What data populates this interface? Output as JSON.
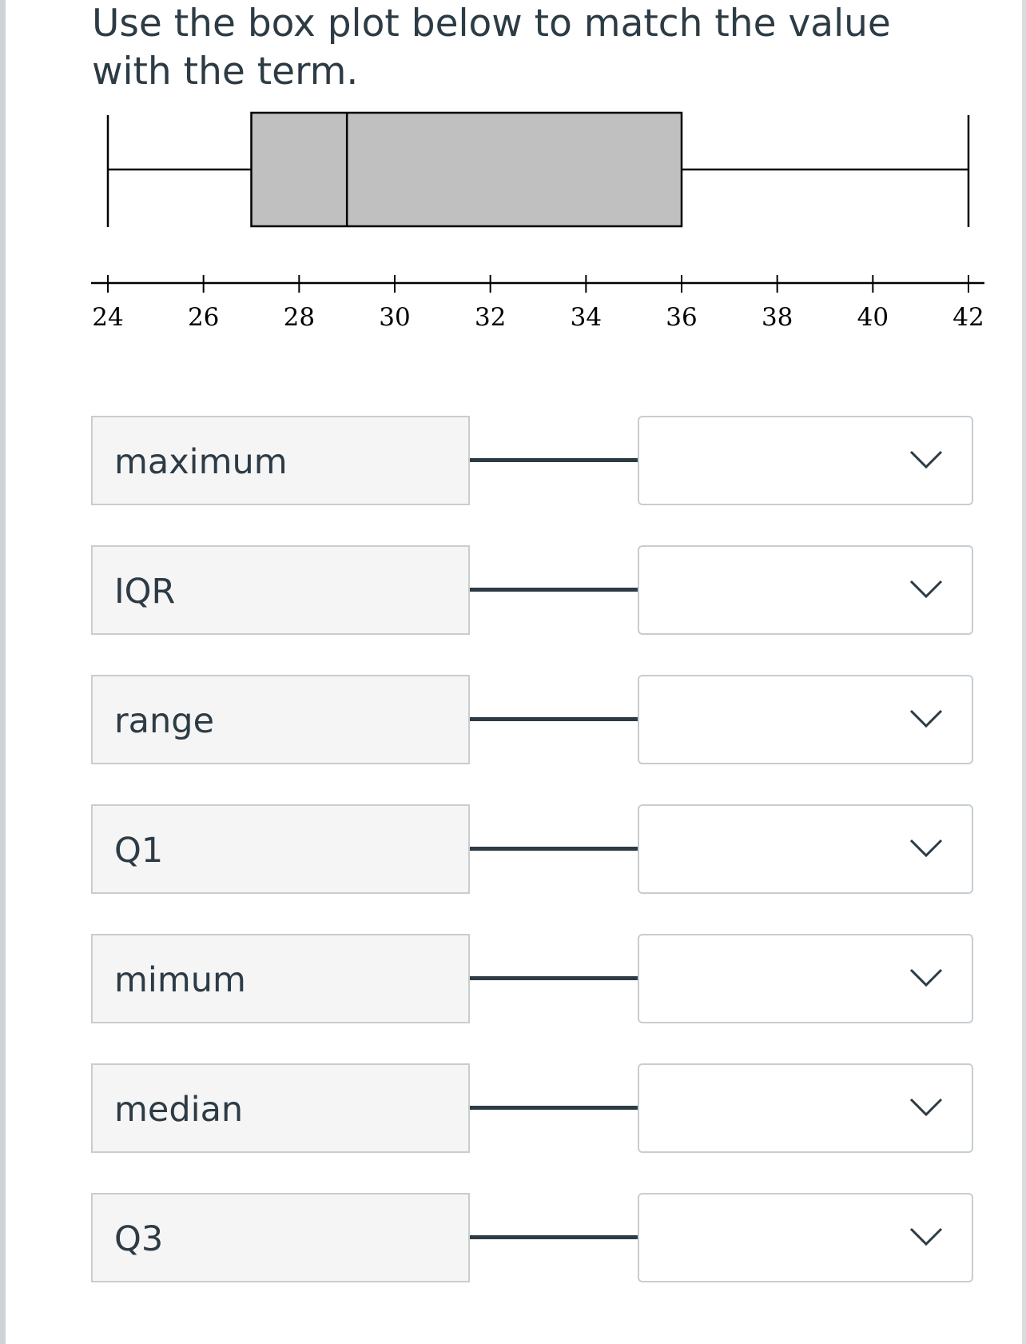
{
  "question": {
    "text": "Use the box plot below to match the value with the term."
  },
  "chart_data": {
    "type": "box",
    "orientation": "horizontal",
    "minimum": 24,
    "q1": 27,
    "median": 29,
    "q3": 36,
    "maximum": 42,
    "xlim": [
      24,
      42
    ],
    "ticks": [
      24,
      26,
      28,
      30,
      32,
      34,
      36,
      38,
      40,
      42
    ],
    "box_fill": "#c0c0c0",
    "line_color": "#000000",
    "title": "",
    "xlabel": "",
    "ylabel": ""
  },
  "matching": {
    "rows": [
      {
        "term": "maximum",
        "selected": ""
      },
      {
        "term": "IQR",
        "selected": ""
      },
      {
        "term": "range",
        "selected": ""
      },
      {
        "term": "Q1",
        "selected": ""
      },
      {
        "term": "mimum",
        "selected": ""
      },
      {
        "term": "median",
        "selected": ""
      },
      {
        "term": "Q3",
        "selected": ""
      }
    ],
    "icon": "chevron-down-icon"
  },
  "colors": {
    "text": "#2d3b45",
    "term_bg": "#f5f5f5",
    "border": "#c7cdd1",
    "connector": "#2d3b45"
  }
}
